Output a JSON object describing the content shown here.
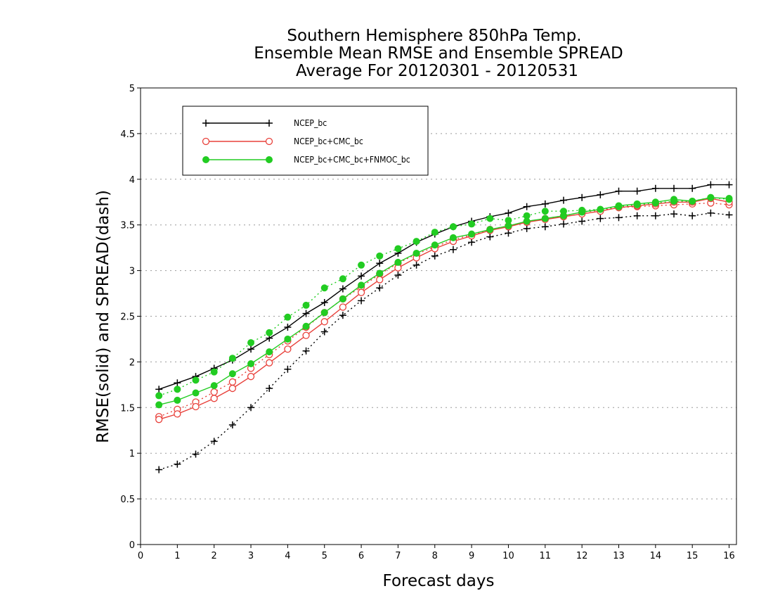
{
  "chart_data": {
    "type": "line",
    "title_lines": [
      "Southern Hemisphere 850hPa Temp.",
      "Ensemble Mean RMSE and Ensemble SPREAD",
      "Average For 20120301 - 20120531"
    ],
    "xlabel": "Forecast days",
    "ylabel": "RMSE(solid) and SPREAD(dash)",
    "xlim": [
      0,
      16.2
    ],
    "ylim": [
      0,
      5
    ],
    "x_ticks": [
      "0",
      "1",
      "2",
      "3",
      "4",
      "5",
      "6",
      "7",
      "8",
      "9",
      "10",
      "11",
      "12",
      "13",
      "14",
      "15",
      "16"
    ],
    "y_ticks": [
      "0",
      "0.5",
      "1",
      "1.5",
      "2",
      "2.5",
      "3",
      "3.5",
      "4",
      "4.5",
      "5"
    ],
    "y_tick_values": [
      0,
      0.5,
      1,
      1.5,
      2,
      2.5,
      3,
      3.5,
      4,
      4.5,
      5
    ],
    "grid": "horizontal dotted",
    "legend_position": "top-left",
    "x": [
      0.5,
      1,
      1.5,
      2,
      2.5,
      3,
      3.5,
      4,
      4.5,
      5,
      5.5,
      6,
      6.5,
      7,
      7.5,
      8,
      8.5,
      9,
      9.5,
      10,
      10.5,
      11,
      11.5,
      12,
      12.5,
      13,
      13.5,
      14,
      14.5,
      15,
      15.5,
      16
    ],
    "series": [
      {
        "name": "NCEP_bc",
        "color": "#000000",
        "marker": "plus",
        "rmse": [
          1.7,
          1.77,
          1.84,
          1.93,
          2.02,
          2.14,
          2.26,
          2.38,
          2.53,
          2.65,
          2.8,
          2.94,
          3.08,
          3.19,
          3.31,
          3.4,
          3.48,
          3.54,
          3.59,
          3.63,
          3.7,
          3.73,
          3.77,
          3.8,
          3.83,
          3.87,
          3.87,
          3.9,
          3.9,
          3.9,
          3.94,
          3.94
        ],
        "spread": [
          0.82,
          0.88,
          0.99,
          1.13,
          1.31,
          1.5,
          1.71,
          1.92,
          2.12,
          2.33,
          2.51,
          2.67,
          2.81,
          2.95,
          3.06,
          3.16,
          3.23,
          3.31,
          3.37,
          3.41,
          3.46,
          3.48,
          3.51,
          3.54,
          3.57,
          3.58,
          3.6,
          3.6,
          3.62,
          3.6,
          3.63,
          3.61
        ]
      },
      {
        "name": "NCEP_bc+CMC_bc",
        "color": "#e8403a",
        "marker": "open-circle",
        "rmse": [
          1.37,
          1.43,
          1.51,
          1.6,
          1.71,
          1.84,
          1.99,
          2.14,
          2.29,
          2.44,
          2.6,
          2.76,
          2.9,
          3.03,
          3.14,
          3.24,
          3.32,
          3.38,
          3.44,
          3.48,
          3.53,
          3.56,
          3.59,
          3.62,
          3.65,
          3.69,
          3.71,
          3.73,
          3.75,
          3.75,
          3.79,
          3.75
        ],
        "spread": [
          1.4,
          1.48,
          1.56,
          1.67,
          1.78,
          1.93,
          2.08,
          2.23,
          2.38,
          2.54,
          2.69,
          2.82,
          2.96,
          3.08,
          3.18,
          3.26,
          3.34,
          3.39,
          3.45,
          3.49,
          3.53,
          3.57,
          3.6,
          3.64,
          3.66,
          3.69,
          3.7,
          3.71,
          3.72,
          3.73,
          3.74,
          3.72
        ]
      },
      {
        "name": "NCEP_bc+CMC_bc+FNMOC_bc",
        "color": "#22cc22",
        "marker": "filled-circle",
        "rmse": [
          1.53,
          1.58,
          1.66,
          1.74,
          1.87,
          1.98,
          2.11,
          2.25,
          2.39,
          2.54,
          2.69,
          2.84,
          2.97,
          3.09,
          3.19,
          3.28,
          3.36,
          3.4,
          3.45,
          3.49,
          3.54,
          3.57,
          3.6,
          3.64,
          3.67,
          3.71,
          3.73,
          3.75,
          3.78,
          3.76,
          3.8,
          3.79
        ],
        "spread": [
          1.63,
          1.7,
          1.8,
          1.89,
          2.04,
          2.21,
          2.32,
          2.49,
          2.62,
          2.81,
          2.91,
          3.06,
          3.16,
          3.24,
          3.32,
          3.42,
          3.48,
          3.51,
          3.57,
          3.55,
          3.6,
          3.65,
          3.65,
          3.66,
          3.67,
          3.7,
          3.72,
          3.74,
          3.76,
          3.76,
          3.8,
          3.78
        ]
      }
    ]
  }
}
